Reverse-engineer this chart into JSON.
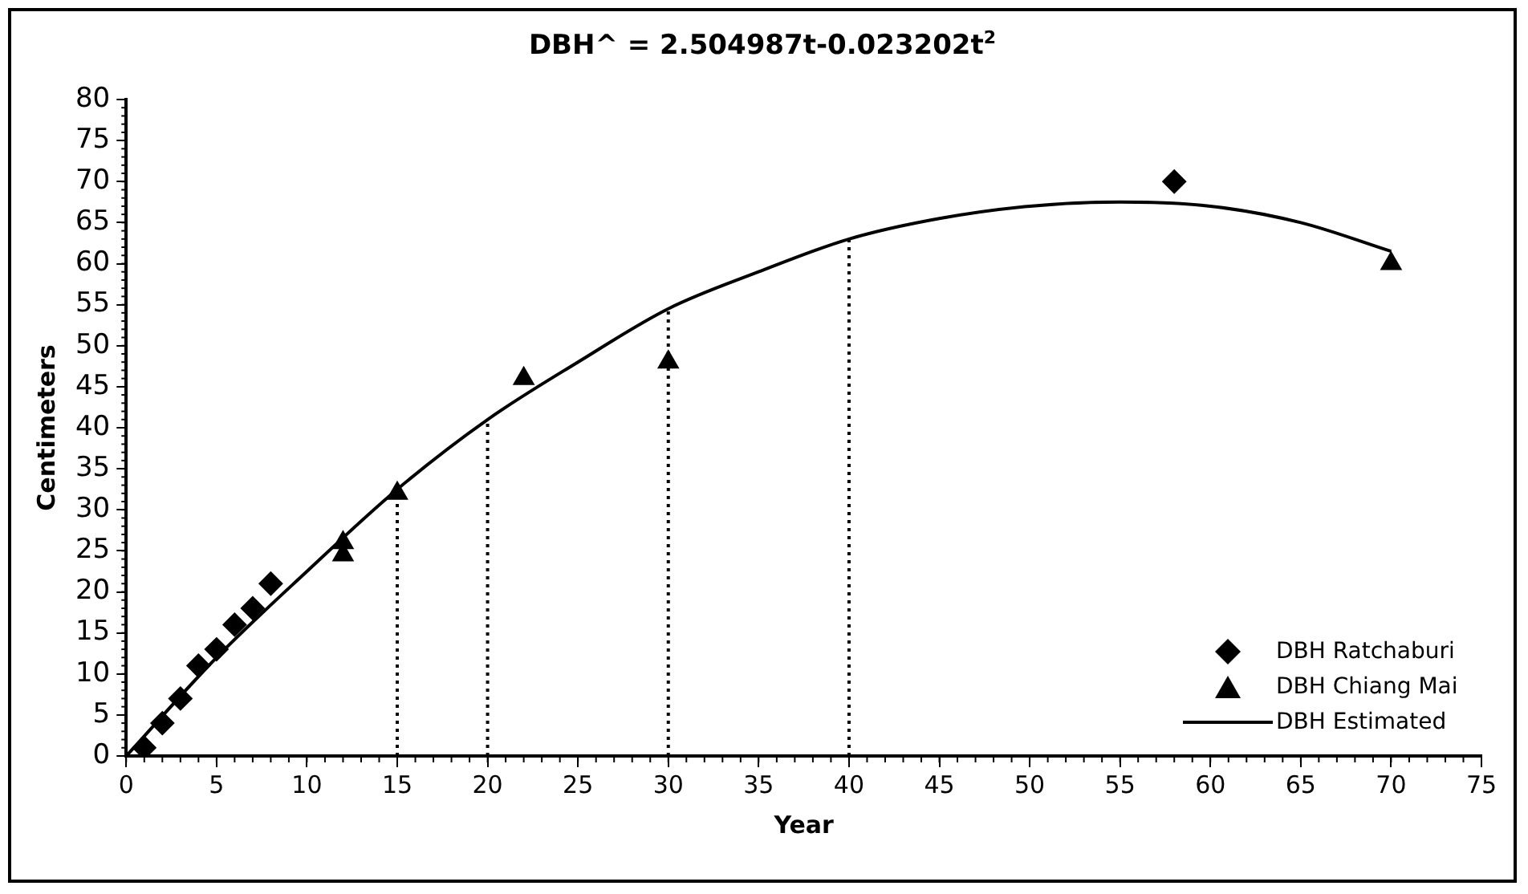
{
  "chart_data": {
    "type": "scatter",
    "title": "DBH^ = 2.504987t-0.023202t$^{2}$",
    "xlabel": "Year",
    "ylabel": "Centimeters",
    "xlim": [
      0,
      75
    ],
    "xticks": [
      0,
      5,
      10,
      15,
      20,
      25,
      30,
      35,
      40,
      45,
      50,
      55,
      60,
      65,
      70,
      75
    ],
    "ylim": [
      0,
      80
    ],
    "yticks": [
      0,
      5,
      10,
      15,
      20,
      25,
      30,
      35,
      40,
      45,
      50,
      55,
      60,
      65,
      70,
      75,
      80
    ],
    "grid": false,
    "legend": "bottom right",
    "series": [
      {
        "name": "DBH Ratchaburi",
        "marker": "diamond",
        "color": "#000000",
        "x": [
          1,
          2,
          3,
          4,
          5,
          6,
          7,
          8,
          58
        ],
        "values": [
          1,
          4,
          7,
          11,
          13,
          16,
          18,
          21,
          70
        ]
      },
      {
        "name": "DBH Chiang Mai",
        "marker": "triangle",
        "color": "#000000",
        "x": [
          12,
          12,
          15,
          22,
          30,
          70
        ],
        "values": [
          26,
          24.5,
          32,
          46,
          48,
          60
        ]
      },
      {
        "name": "DBH Estimated",
        "type": "line",
        "marker": "none",
        "line_style": "solid",
        "color": "#000000",
        "x": [
          0,
          5,
          10,
          15,
          20,
          25,
          30,
          35,
          40,
          45,
          50,
          55,
          60,
          65,
          70
        ],
        "values": [
          0,
          12,
          22.5,
          32.5,
          41,
          48,
          54.5,
          59,
          63,
          65.5,
          67,
          67.5,
          67,
          65,
          61.5
        ]
      }
    ],
    "ref_lines": [
      {
        "axis": "x",
        "value": 15,
        "line_style": "dotted",
        "color": "#000000"
      },
      {
        "axis": "x",
        "value": 20,
        "line_style": "dotted",
        "color": "#000000"
      },
      {
        "axis": "x",
        "value": 30,
        "line_style": "dotted",
        "color": "#000000"
      },
      {
        "axis": "x",
        "value": 40,
        "line_style": "dotted",
        "color": "#000000"
      }
    ]
  }
}
